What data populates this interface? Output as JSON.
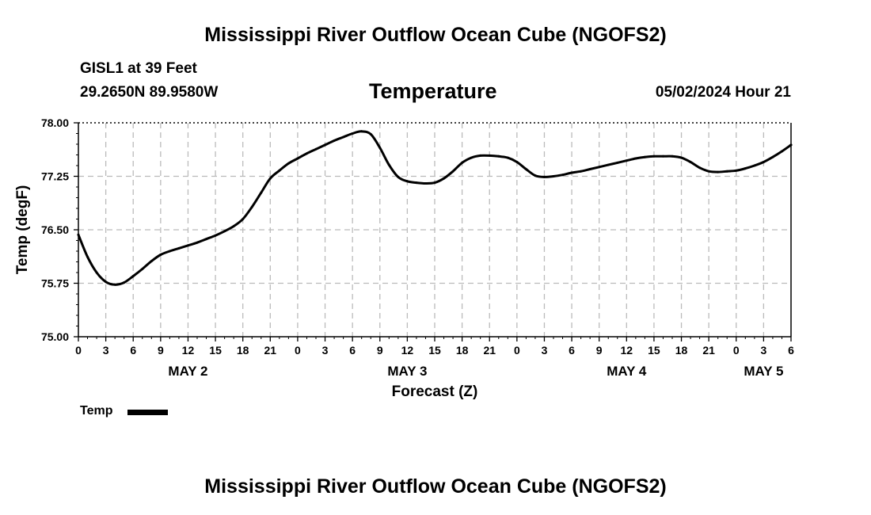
{
  "header": {
    "title": "Mississippi River Outflow Ocean Cube (NGOFS2)",
    "station": "GISL1 at 39 Feet",
    "coordinates": "29.2650N  89.9580W",
    "subtitle": "Temperature",
    "valid_time": "05/02/2024 Hour 21"
  },
  "footer": {
    "title": "Mississippi River Outflow Ocean Cube (NGOFS2)"
  },
  "legend": {
    "label": "Temp",
    "color": "#000000"
  },
  "chart_data": {
    "type": "line",
    "title": "Temperature",
    "xlabel": "Forecast (Z)",
    "ylabel": "Temp (degF)",
    "x_unit": "hours since 05/02/2024 00Z",
    "xlim": [
      0,
      78
    ],
    "ylim": [
      75.0,
      78.0
    ],
    "grid": true,
    "legend_position": "bottom-left",
    "y_ticks": [
      75.0,
      75.75,
      76.5,
      77.25,
      78.0
    ],
    "y_tick_labels": [
      "75.00",
      "75.75",
      "76.50",
      "77.25",
      "78.00"
    ],
    "x_ticks": [
      0,
      3,
      6,
      9,
      12,
      15,
      18,
      21,
      24,
      27,
      30,
      33,
      36,
      39,
      42,
      45,
      48,
      51,
      54,
      57,
      60,
      63,
      66,
      69,
      72,
      75,
      78
    ],
    "x_tick_labels": [
      "0",
      "3",
      "6",
      "9",
      "12",
      "15",
      "18",
      "21",
      "0",
      "3",
      "6",
      "9",
      "12",
      "15",
      "18",
      "21",
      "0",
      "3",
      "6",
      "9",
      "12",
      "15",
      "18",
      "21",
      "0",
      "3",
      "6"
    ],
    "day_labels": [
      {
        "x": 12,
        "label": "MAY 2"
      },
      {
        "x": 36,
        "label": "MAY 3"
      },
      {
        "x": 60,
        "label": "MAY 4"
      },
      {
        "x": 75,
        "label": "MAY 5"
      }
    ],
    "series": [
      {
        "name": "Temp",
        "color": "#000000",
        "x": [
          0,
          1,
          2,
          3,
          4,
          5,
          6,
          7,
          8,
          9,
          10,
          11,
          12,
          13,
          14,
          15,
          16,
          17,
          18,
          19,
          20,
          21,
          22,
          23,
          24,
          25,
          26,
          27,
          28,
          29,
          30,
          31,
          32,
          33,
          34,
          35,
          36,
          37,
          38,
          39,
          40,
          41,
          42,
          43,
          44,
          45,
          46,
          47,
          48,
          49,
          50,
          51,
          52,
          53,
          54,
          55,
          56,
          57,
          58,
          59,
          60,
          61,
          62,
          63,
          64,
          65,
          66,
          67,
          68,
          69,
          70,
          71,
          72,
          73,
          74,
          75,
          76,
          77,
          78
        ],
        "y": [
          76.43,
          76.12,
          75.9,
          75.77,
          75.73,
          75.76,
          75.85,
          75.95,
          76.06,
          76.15,
          76.2,
          76.24,
          76.28,
          76.32,
          76.37,
          76.42,
          76.48,
          76.55,
          76.65,
          76.82,
          77.02,
          77.22,
          77.33,
          77.43,
          77.5,
          77.57,
          77.63,
          77.69,
          77.75,
          77.8,
          77.85,
          77.88,
          77.84,
          77.65,
          77.41,
          77.24,
          77.18,
          77.16,
          77.15,
          77.16,
          77.22,
          77.32,
          77.44,
          77.51,
          77.54,
          77.54,
          77.53,
          77.51,
          77.45,
          77.35,
          77.26,
          77.24,
          77.25,
          77.27,
          77.3,
          77.32,
          77.35,
          77.38,
          77.41,
          77.44,
          77.47,
          77.5,
          77.52,
          77.53,
          77.53,
          77.53,
          77.51,
          77.45,
          77.37,
          77.32,
          77.31,
          77.32,
          77.33,
          77.36,
          77.4,
          77.45,
          77.52,
          77.6,
          77.69
        ]
      }
    ]
  }
}
